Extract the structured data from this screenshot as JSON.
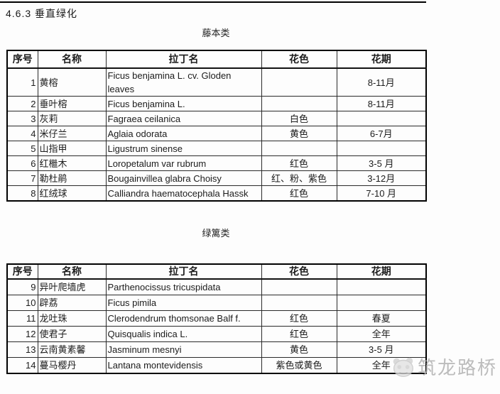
{
  "page": {
    "title": "4.6.3 垂直绿化"
  },
  "tables": [
    {
      "caption": "藤本类",
      "headers": [
        "序号",
        "名称",
        "拉丁名",
        "花色",
        "花期"
      ],
      "rows": [
        {
          "no": "1",
          "name": "黄榕",
          "latin": "Ficus benjamina L. cv. Gloden leaves",
          "color": "",
          "period": "8-11月"
        },
        {
          "no": "2",
          "name": "垂叶榕",
          "latin": "Ficus benjamina L.",
          "color": "",
          "period": "8-11月"
        },
        {
          "no": "3",
          "name": "灰莉",
          "latin": "Fagraea ceilanica",
          "color": "白色",
          "period": ""
        },
        {
          "no": "4",
          "name": "米仔兰",
          "latin": "Aglaia odorata",
          "color": "黄色",
          "period": "6-7月"
        },
        {
          "no": "5",
          "name": "山指甲",
          "latin": "Ligustrum sinense",
          "color": "",
          "period": ""
        },
        {
          "no": "6",
          "name": "红檵木",
          "latin": "Loropetalum var rubrum",
          "color": "红色",
          "period": "3-5 月"
        },
        {
          "no": "7",
          "name": "勒杜鹃",
          "latin": "Bougainvillea glabra Choisy",
          "color": "红、粉、紫色",
          "period": "3-12月"
        },
        {
          "no": "8",
          "name": "红绒球",
          "latin": "Calliandra haematocephala Hassk",
          "color": "红色",
          "period": "7-10 月"
        }
      ]
    },
    {
      "caption": "绿篱类",
      "headers": [
        "序号",
        "名称",
        "拉丁名",
        "花色",
        "花期"
      ],
      "rows": [
        {
          "no": "9",
          "name": "异叶爬墙虎",
          "latin": "Parthenocissus tricuspidata",
          "color": "",
          "period": ""
        },
        {
          "no": "10",
          "name": "辟荔",
          "latin": "Ficus pimila",
          "color": "",
          "period": ""
        },
        {
          "no": "11",
          "name": "龙吐珠",
          "latin": "Clerodendrum thomsonae Balf f.",
          "color": "红色",
          "period": "春夏"
        },
        {
          "no": "12",
          "name": "使君子",
          "latin": "Quisqualis indica L.",
          "color": "红色",
          "period": "全年"
        },
        {
          "no": "13",
          "name": "云南黄素馨",
          "latin": "Jasminum mesnyi",
          "color": "黄色",
          "period": "3-5 月"
        },
        {
          "no": "14",
          "name": "蔓马樱丹",
          "latin": "Lantana montevidensis",
          "color": "紫色或黄色",
          "period": "全年"
        }
      ]
    }
  ],
  "watermark": {
    "text": "筑龙路桥",
    "logo": "panda-logo",
    "color": "#b0b0b0"
  }
}
